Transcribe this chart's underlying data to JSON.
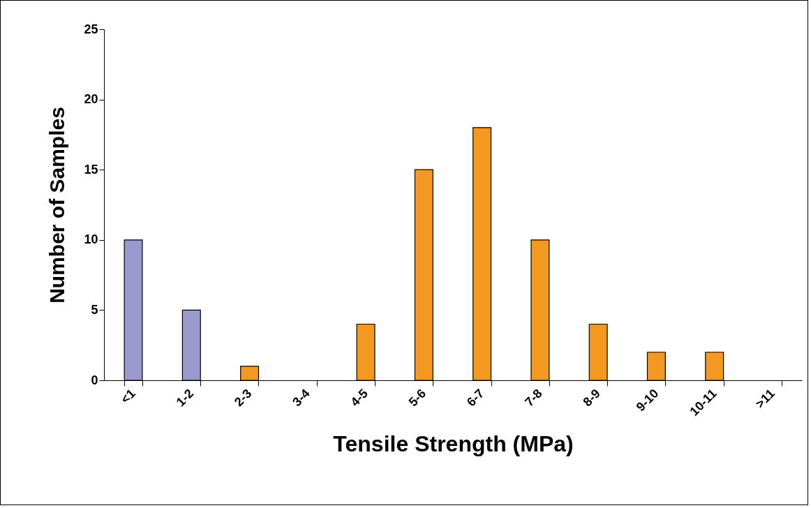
{
  "chart_data": {
    "type": "bar",
    "xlabel": "Tensile Strength (MPa)",
    "ylabel": "Number of Samples",
    "categories": [
      "<1",
      "1-2",
      "2-3",
      "3-4",
      "4-5",
      "5-6",
      "6-7",
      "7-8",
      "8-9",
      "9-10",
      "10-11",
      ">11"
    ],
    "values": [
      10,
      5,
      1,
      0,
      4,
      15,
      18,
      10,
      4,
      2,
      2,
      0
    ],
    "colors": [
      "#9999cc",
      "#9999cc",
      "#f4991f",
      "#f4991f",
      "#f4991f",
      "#f4991f",
      "#f4991f",
      "#f4991f",
      "#f4991f",
      "#f4991f",
      "#f4991f",
      "#f4991f"
    ],
    "ylim": [
      0,
      25
    ],
    "yticks": [
      0,
      5,
      10,
      15,
      20,
      25
    ],
    "grid": false
  }
}
